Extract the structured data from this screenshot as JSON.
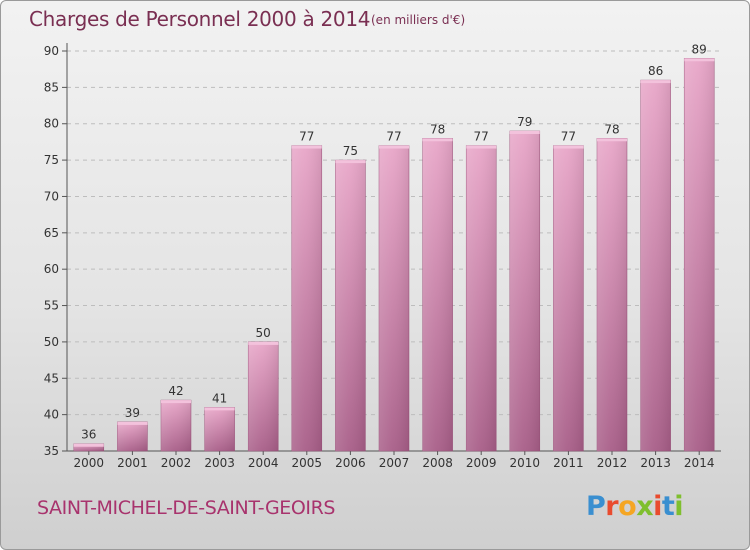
{
  "header": {
    "title": "Charges de Personnel 2000 à 2014",
    "subtitle": "(en milliers d'€)"
  },
  "footer": {
    "commune": "SAINT-MICHEL-DE-SAINT-GEOIRS",
    "logo_letters": [
      "P",
      "r",
      "o",
      "x",
      "i",
      "t",
      "i"
    ],
    "logo_colors": [
      "#3a8fd0",
      "#e94b2e",
      "#f5a623",
      "#7fbf2e",
      "#e94b2e",
      "#3a8fd0",
      "#7fbf2e"
    ]
  },
  "chart_data": {
    "type": "bar",
    "title": "Charges de Personnel 2000 à 2014",
    "subtitle": "(en milliers d'€)",
    "categories": [
      "2000",
      "2001",
      "2002",
      "2003",
      "2004",
      "2005",
      "2006",
      "2007",
      "2008",
      "2009",
      "2010",
      "2011",
      "2012",
      "2013",
      "2014"
    ],
    "values": [
      36,
      39,
      42,
      41,
      50,
      77,
      75,
      77,
      78,
      77,
      79,
      77,
      78,
      86,
      89
    ],
    "ylim": [
      35,
      90
    ],
    "yticks": [
      35,
      40,
      45,
      50,
      55,
      60,
      65,
      70,
      75,
      80,
      85,
      90
    ],
    "grid": true,
    "bar_color": "#c9709c"
  }
}
